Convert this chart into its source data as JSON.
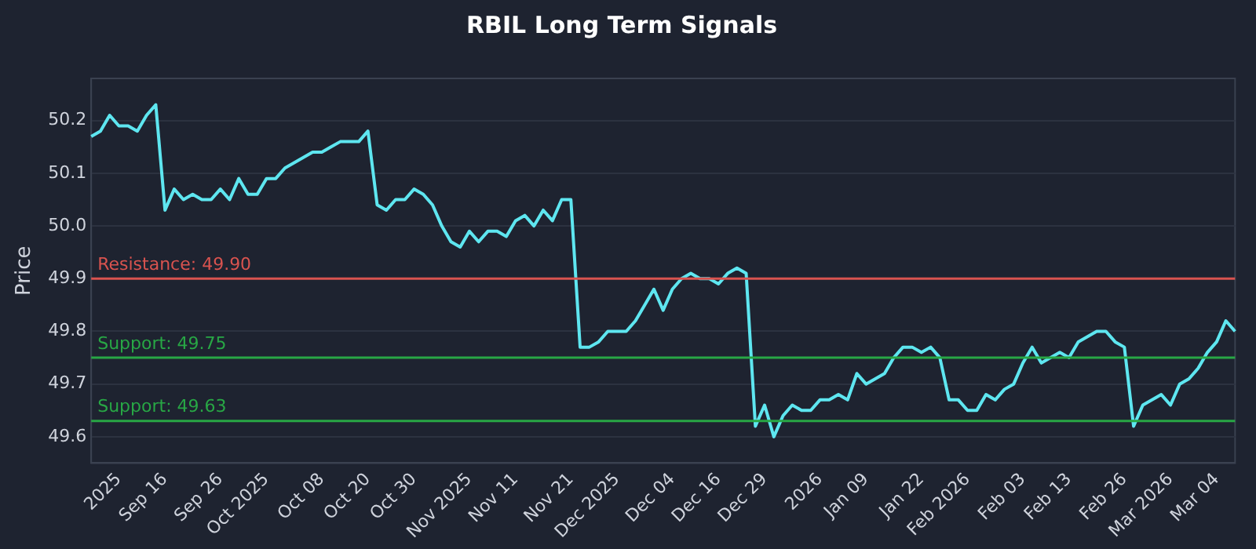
{
  "chart_data": {
    "type": "line",
    "title": "RBIL Long Term Signals",
    "ylabel": "Price",
    "categories": [
      null,
      null,
      null,
      "2025",
      null,
      null,
      null,
      null,
      "Sep 16",
      null,
      null,
      null,
      null,
      null,
      "Sep 26",
      null,
      null,
      null,
      null,
      "Oct 2025",
      null,
      null,
      null,
      null,
      null,
      "Oct 08",
      null,
      null,
      null,
      null,
      "Oct 20",
      null,
      null,
      null,
      null,
      "Oct 30",
      null,
      null,
      null,
      null,
      null,
      "Nov 2025",
      null,
      null,
      null,
      null,
      "Nov 11",
      null,
      null,
      null,
      null,
      null,
      "Nov 21",
      null,
      null,
      null,
      null,
      "Dec 2025",
      null,
      null,
      null,
      null,
      null,
      "Dec 04",
      null,
      null,
      null,
      null,
      "Dec 16",
      null,
      null,
      null,
      null,
      "Dec 29",
      null,
      null,
      null,
      null,
      null,
      "2026",
      null,
      null,
      null,
      null,
      "Jan 09",
      null,
      null,
      null,
      null,
      null,
      "Jan 22",
      null,
      null,
      null,
      null,
      "Feb 2026",
      null,
      null,
      null,
      null,
      null,
      "Feb 03",
      null,
      null,
      null,
      null,
      "Feb 13",
      null,
      null,
      null,
      null,
      null,
      "Feb 26",
      null,
      null,
      null,
      null,
      "Mar 2026",
      null,
      null,
      null,
      null,
      "Mar 04",
      null,
      null
    ],
    "series": [
      {
        "color": "#5ee6f0",
        "values": [
          50.17,
          50.18,
          50.21,
          50.19,
          50.19,
          50.18,
          50.21,
          50.23,
          50.03,
          50.07,
          50.05,
          50.06,
          50.05,
          50.05,
          50.07,
          50.05,
          50.09,
          50.06,
          50.06,
          50.09,
          50.09,
          50.11,
          50.12,
          50.13,
          50.14,
          50.14,
          50.15,
          50.16,
          50.16,
          50.16,
          50.18,
          50.04,
          50.03,
          50.05,
          50.05,
          50.07,
          50.06,
          50.04,
          50.0,
          49.97,
          49.96,
          49.99,
          49.97,
          49.99,
          49.99,
          49.98,
          50.01,
          50.02,
          50.0,
          50.03,
          50.01,
          50.05,
          50.05,
          49.77,
          49.77,
          49.78,
          49.8,
          49.8,
          49.8,
          49.82,
          49.85,
          49.88,
          49.84,
          49.88,
          49.9,
          49.91,
          49.9,
          49.9,
          49.89,
          49.91,
          49.92,
          49.91,
          49.62,
          49.66,
          49.6,
          49.64,
          49.66,
          49.65,
          49.65,
          49.67,
          49.67,
          49.68,
          49.67,
          49.72,
          49.7,
          49.71,
          49.72,
          49.75,
          49.77,
          49.77,
          49.76,
          49.77,
          49.75,
          49.67,
          49.67,
          49.65,
          49.65,
          49.68,
          49.67,
          49.69,
          49.7,
          49.74,
          49.77,
          49.74,
          49.75,
          49.76,
          49.75,
          49.78,
          49.79,
          49.8,
          49.8,
          49.78,
          49.77,
          49.62,
          49.66,
          49.67,
          49.68,
          49.66,
          49.7,
          49.71,
          49.73,
          49.76,
          49.78,
          49.82,
          49.8
        ]
      }
    ],
    "ylim": [
      49.55,
      50.28
    ],
    "yticks": [
      49.6,
      49.7,
      49.8,
      49.9,
      {
        "value": 50,
        "label": "50.0"
      },
      50.1,
      50.2
    ],
    "ref_lines": [
      {
        "axis": "y",
        "value": 49.9,
        "label": "Resistance: 49.90",
        "color": "#d9534f"
      },
      {
        "axis": "y",
        "value": 49.75,
        "label": "Support: 49.75",
        "color": "#28a745"
      },
      {
        "axis": "y",
        "value": 49.63,
        "label": "Support: 49.63",
        "color": "#28a745"
      }
    ],
    "grid": "y",
    "legend": false,
    "marker": "none",
    "line_style": "solid"
  }
}
